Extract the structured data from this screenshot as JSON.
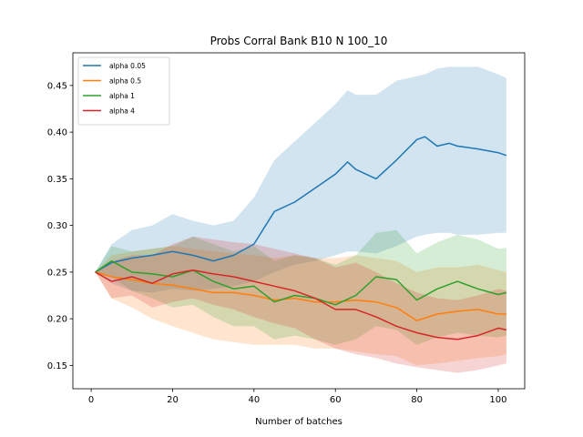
{
  "chart_data": {
    "type": "line",
    "title": "Probs Corral Bank B10 N 100_10",
    "xlabel": "Number of batches",
    "ylabel": "",
    "xlim": [
      -4.5,
      106.5
    ],
    "ylim": [
      0.125,
      0.485
    ],
    "xticks": [
      0,
      20,
      40,
      60,
      80,
      100
    ],
    "yticks": [
      0.15,
      0.2,
      0.25,
      0.3,
      0.35,
      0.4,
      0.45
    ],
    "ytick_labels": [
      "0.15",
      "0.20",
      "0.25",
      "0.30",
      "0.35",
      "0.40",
      "0.45"
    ],
    "legend_position": "upper-left",
    "series": [
      {
        "name": "alpha 0.05",
        "color": "#1f77b4",
        "x": [
          1,
          5,
          10,
          15,
          20,
          25,
          30,
          35,
          40,
          45,
          50,
          55,
          60,
          63,
          65,
          70,
          75,
          80,
          82,
          85,
          88,
          90,
          95,
          100,
          102
        ],
        "y": [
          0.25,
          0.26,
          0.265,
          0.268,
          0.272,
          0.268,
          0.262,
          0.268,
          0.28,
          0.315,
          0.325,
          0.34,
          0.355,
          0.368,
          0.36,
          0.35,
          0.37,
          0.392,
          0.395,
          0.385,
          0.388,
          0.385,
          0.382,
          0.378,
          0.375
        ],
        "lower": [
          0.25,
          0.238,
          0.23,
          0.228,
          0.232,
          0.23,
          0.232,
          0.235,
          0.24,
          0.25,
          0.258,
          0.262,
          0.268,
          0.272,
          0.272,
          0.27,
          0.278,
          0.288,
          0.29,
          0.292,
          0.292,
          0.29,
          0.29,
          0.292,
          0.292
        ],
        "upper": [
          0.25,
          0.28,
          0.295,
          0.3,
          0.312,
          0.305,
          0.3,
          0.305,
          0.33,
          0.37,
          0.39,
          0.41,
          0.43,
          0.445,
          0.44,
          0.44,
          0.455,
          0.46,
          0.462,
          0.468,
          0.47,
          0.47,
          0.47,
          0.462,
          0.458
        ]
      },
      {
        "name": "alpha 0.5",
        "color": "#ff7f0e",
        "x": [
          1,
          5,
          10,
          15,
          20,
          25,
          30,
          35,
          40,
          45,
          50,
          55,
          60,
          65,
          70,
          75,
          80,
          85,
          90,
          95,
          100,
          102
        ],
        "y": [
          0.25,
          0.245,
          0.242,
          0.238,
          0.236,
          0.232,
          0.228,
          0.228,
          0.225,
          0.22,
          0.222,
          0.218,
          0.218,
          0.22,
          0.218,
          0.212,
          0.198,
          0.205,
          0.208,
          0.21,
          0.205,
          0.205
        ],
        "lower": [
          0.25,
          0.222,
          0.212,
          0.2,
          0.192,
          0.185,
          0.178,
          0.175,
          0.172,
          0.172,
          0.172,
          0.168,
          0.168,
          0.165,
          0.162,
          0.16,
          0.15,
          0.152,
          0.155,
          0.158,
          0.16,
          0.162
        ],
        "upper": [
          0.25,
          0.268,
          0.272,
          0.275,
          0.278,
          0.275,
          0.272,
          0.27,
          0.268,
          0.265,
          0.268,
          0.265,
          0.265,
          0.268,
          0.265,
          0.262,
          0.25,
          0.255,
          0.255,
          0.258,
          0.252,
          0.25
        ]
      },
      {
        "name": "alpha 1",
        "color": "#2ca02c",
        "x": [
          1,
          5,
          10,
          15,
          20,
          25,
          30,
          35,
          40,
          45,
          50,
          55,
          60,
          65,
          70,
          75,
          80,
          85,
          90,
          95,
          100,
          102
        ],
        "y": [
          0.25,
          0.262,
          0.25,
          0.248,
          0.245,
          0.252,
          0.24,
          0.232,
          0.235,
          0.218,
          0.225,
          0.222,
          0.215,
          0.225,
          0.245,
          0.242,
          0.22,
          0.232,
          0.24,
          0.232,
          0.226,
          0.228
        ],
        "lower": [
          0.25,
          0.245,
          0.23,
          0.222,
          0.212,
          0.215,
          0.202,
          0.192,
          0.192,
          0.178,
          0.182,
          0.178,
          0.172,
          0.178,
          0.192,
          0.188,
          0.172,
          0.18,
          0.185,
          0.182,
          0.18,
          0.182
        ],
        "upper": [
          0.25,
          0.278,
          0.272,
          0.275,
          0.278,
          0.288,
          0.28,
          0.272,
          0.278,
          0.262,
          0.268,
          0.265,
          0.258,
          0.268,
          0.292,
          0.295,
          0.27,
          0.282,
          0.29,
          0.285,
          0.275,
          0.276
        ]
      },
      {
        "name": "alpha 4",
        "color": "#d62728",
        "x": [
          1,
          5,
          10,
          15,
          20,
          25,
          30,
          35,
          40,
          45,
          50,
          55,
          60,
          65,
          70,
          75,
          80,
          85,
          90,
          95,
          100,
          102
        ],
        "y": [
          0.25,
          0.24,
          0.245,
          0.238,
          0.248,
          0.252,
          0.248,
          0.245,
          0.24,
          0.235,
          0.23,
          0.222,
          0.21,
          0.21,
          0.202,
          0.192,
          0.185,
          0.18,
          0.178,
          0.182,
          0.19,
          0.188
        ],
        "lower": [
          0.25,
          0.222,
          0.225,
          0.212,
          0.218,
          0.222,
          0.215,
          0.21,
          0.202,
          0.195,
          0.19,
          0.178,
          0.168,
          0.162,
          0.158,
          0.152,
          0.148,
          0.145,
          0.142,
          0.145,
          0.15,
          0.152
        ],
        "upper": [
          0.25,
          0.262,
          0.268,
          0.268,
          0.28,
          0.288,
          0.285,
          0.282,
          0.28,
          0.275,
          0.27,
          0.265,
          0.255,
          0.26,
          0.25,
          0.238,
          0.228,
          0.222,
          0.22,
          0.225,
          0.232,
          0.23
        ]
      }
    ]
  }
}
